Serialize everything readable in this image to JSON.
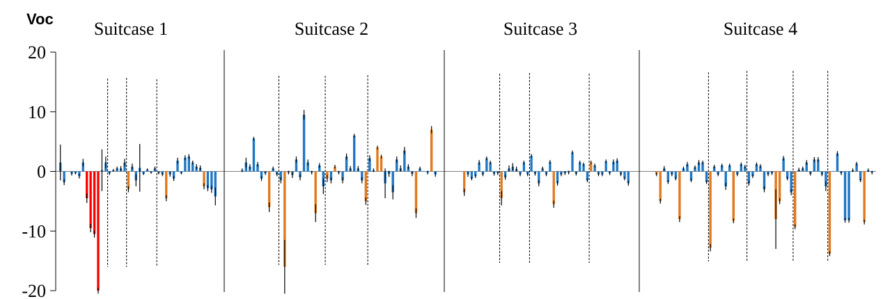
{
  "chart_data": {
    "type": "bar",
    "ylabel": "Voc",
    "ylim": [
      -20,
      20
    ],
    "yticks": [
      "20",
      "10",
      "0",
      "-10",
      "-20"
    ],
    "ytick_values": [
      20,
      10,
      0,
      -10,
      -20
    ],
    "grid": false,
    "colors": {
      "red": "#ff0000",
      "orange": "#e07a1f",
      "blue": "#1f77c4",
      "err": "#000000"
    },
    "panels": [
      {
        "label": "Suitcase 1",
        "values": [
          1.5,
          -1.8,
          0,
          -0.4,
          -0.3,
          -0.8,
          1.5,
          -4.5,
          -9.5,
          -10.5,
          -20,
          0.2,
          1.5,
          -0.3,
          0.2,
          0.5,
          0.5,
          1.5,
          -3,
          0.8,
          -1.5,
          0.6,
          -0.4,
          0.3,
          -0.2,
          0.5,
          -0.3,
          -0.5,
          -4.5,
          -0.5,
          -1.2,
          1.8,
          -0.3,
          2.3,
          2.5,
          1.5,
          0.8,
          0.6,
          -2.5,
          -2.8,
          -3.0,
          -4.2
        ],
        "colors": [
          "b",
          "b",
          "b",
          "b",
          "b",
          "b",
          "b",
          "r",
          "r",
          "r",
          "r",
          "b",
          "b",
          "b",
          "b",
          "b",
          "b",
          "b",
          "o",
          "b",
          "b",
          "b",
          "b",
          "b",
          "b",
          "b",
          "b",
          "b",
          "o",
          "b",
          "b",
          "b",
          "b",
          "b",
          "b",
          "b",
          "b",
          "b",
          "o",
          "b",
          "b",
          "b"
        ],
        "errors": [
          3,
          0.5,
          0,
          0.3,
          0.2,
          0.4,
          0.6,
          0.8,
          0.7,
          0.6,
          0.5,
          3.5,
          1,
          0.3,
          0.2,
          0.3,
          0.4,
          0.6,
          0.5,
          0.5,
          1,
          4,
          0.2,
          0.2,
          0.2,
          0.3,
          0.2,
          0.3,
          0.5,
          0.4,
          0.4,
          0.5,
          0.2,
          0.4,
          0.4,
          0.3,
          0.4,
          0.4,
          0.5,
          0.5,
          0.6,
          1.5
        ],
        "dividers": [
          13,
          18,
          26
        ]
      },
      {
        "label": "Suitcase 2",
        "values": [
          0.2,
          1.5,
          0.8,
          5.5,
          1.2,
          -1.2,
          -0.3,
          -6,
          0.5,
          -0.5,
          -1.5,
          -16,
          -0.2,
          -0.6,
          2,
          -1,
          9.5,
          1.5,
          -0.2,
          -7,
          1,
          -2.5,
          -1.2,
          -1.5,
          0.8,
          -0.2,
          -1.5,
          2.5,
          0.5,
          6,
          0.5,
          -1.5,
          -5,
          2.2,
          0.2,
          4,
          2.5,
          -2,
          -0.4,
          -3.5,
          2,
          0.5,
          3.5,
          0.8,
          -0.4,
          -7,
          0.5,
          0,
          -0.2,
          7,
          -0.5
        ],
        "colors": [
          "b",
          "b",
          "b",
          "b",
          "b",
          "b",
          "b",
          "o",
          "b",
          "b",
          "b",
          "o",
          "b",
          "b",
          "b",
          "b",
          "b",
          "b",
          "b",
          "o",
          "b",
          "b",
          "o",
          "b",
          "o",
          "b",
          "b",
          "b",
          "b",
          "b",
          "b",
          "b",
          "o",
          "b",
          "b",
          "o",
          "o",
          "b",
          "b",
          "b",
          "b",
          "b",
          "b",
          "b",
          "b",
          "o",
          "b",
          "b",
          "b",
          "o",
          "b"
        ],
        "errors": [
          0.3,
          0.8,
          0.4,
          0.3,
          0.4,
          0.4,
          0.3,
          0.8,
          0.3,
          0.3,
          0.5,
          4.5,
          0.3,
          0.5,
          0.5,
          0.5,
          0.8,
          0.5,
          0.3,
          1.5,
          0.4,
          1.3,
          0.6,
          0.5,
          0.3,
          0.3,
          0.5,
          0.5,
          0.4,
          0.3,
          0.4,
          0.5,
          0.6,
          0.5,
          0.3,
          0.3,
          0.3,
          2.5,
          0.5,
          1.2,
          0.5,
          0.5,
          0.6,
          0.4,
          0.4,
          0.8,
          0.3,
          0.3,
          0.3,
          0.6,
          0.4
        ],
        "dividers": [
          10,
          22,
          33
        ]
      },
      {
        "label": "Suitcase 3",
        "values": [
          -3.5,
          -0.5,
          -1.2,
          -0.8,
          1.5,
          -0.5,
          2.2,
          1.5,
          -0.4,
          -0.3,
          -4.5,
          -1,
          0.5,
          0.8,
          0.4,
          -0.5,
          1.5,
          -0.5,
          2.6,
          -0.4,
          -2,
          0.5,
          -0.5,
          1.6,
          -5.5,
          -2,
          -0.5,
          -0.3,
          -0.2,
          3.2,
          -0.4,
          1.5,
          1.2,
          -1.5,
          1.5,
          1,
          -0.5,
          -0.5,
          1.7,
          -0.3,
          1.6,
          1.8,
          -0.5,
          -1.2,
          -2
        ],
        "colors": [
          "o",
          "b",
          "b",
          "b",
          "b",
          "b",
          "b",
          "b",
          "b",
          "b",
          "o",
          "b",
          "b",
          "b",
          "b",
          "b",
          "b",
          "b",
          "b",
          "b",
          "b",
          "b",
          "b",
          "b",
          "o",
          "b",
          "b",
          "b",
          "b",
          "b",
          "b",
          "b",
          "b",
          "b",
          "o",
          "b",
          "b",
          "b",
          "b",
          "b",
          "b",
          "b",
          "b",
          "b",
          "b"
        ],
        "errors": [
          0.6,
          0.4,
          0.3,
          0.3,
          0.4,
          0.3,
          0.3,
          0.3,
          0.3,
          0.3,
          1.2,
          0.4,
          0.5,
          0.6,
          0.4,
          0.3,
          0.3,
          0.3,
          0.3,
          0.3,
          0.5,
          0.3,
          0.3,
          0.3,
          0.6,
          0.4,
          0.3,
          0.3,
          0.3,
          0.3,
          0.3,
          0.3,
          0.3,
          0.3,
          0.3,
          0.3,
          0.3,
          0.3,
          0.3,
          0.3,
          0.4,
          0.4,
          0.3,
          0.3,
          0.4
        ],
        "dividers": [
          10,
          18,
          34
        ]
      },
      {
        "label": "Suitcase 4",
        "values": [
          -0.5,
          -5,
          0.5,
          -1.8,
          -0.5,
          -1.2,
          -8,
          0.5,
          1.2,
          -1.5,
          0.7,
          1.5,
          1.5,
          -1.8,
          -12.8,
          0.8,
          -0.5,
          1,
          -2.5,
          1,
          -8.3,
          -0.5,
          1.2,
          0.8,
          -2,
          -0.8,
          1.2,
          0.9,
          -3,
          -0.5,
          -0.3,
          -8,
          -5,
          2.2,
          -1.2,
          -3.5,
          -9.3,
          0.3,
          0.5,
          1.5,
          -0.4,
          2,
          2,
          -0.5,
          -2.5,
          -13.8,
          0,
          3,
          -0.3,
          -8.2,
          -8.2,
          0.2,
          1.3,
          -1.5,
          -8.5,
          0.2,
          -0.2
        ],
        "colors": [
          "o",
          "o",
          "b",
          "b",
          "b",
          "b",
          "o",
          "b",
          "b",
          "b",
          "b",
          "b",
          "b",
          "b",
          "o",
          "b",
          "b",
          "b",
          "b",
          "b",
          "o",
          "b",
          "b",
          "b",
          "b",
          "b",
          "b",
          "b",
          "b",
          "b",
          "b",
          "o",
          "o",
          "b",
          "b",
          "b",
          "o",
          "b",
          "b",
          "b",
          "b",
          "b",
          "b",
          "b",
          "b",
          "o",
          "b",
          "b",
          "b",
          "b",
          "b",
          "b",
          "b",
          "b",
          "o",
          "b",
          "b"
        ],
        "errors": [
          0.3,
          0.4,
          0.4,
          0.3,
          0.3,
          0.3,
          0.5,
          0.3,
          0.4,
          0.3,
          0.3,
          0.4,
          0.3,
          0.3,
          0.6,
          0.3,
          0.3,
          0.3,
          0.6,
          0.3,
          0.4,
          0.3,
          0.3,
          0.3,
          0.4,
          0.3,
          0.3,
          0.3,
          0.5,
          0.3,
          0.3,
          5,
          0.5,
          0.4,
          0.3,
          0.5,
          0.4,
          0.3,
          0.3,
          0.4,
          0.3,
          0.4,
          0.4,
          0.3,
          0.8,
          0.4,
          0.3,
          0.4,
          0.3,
          0.4,
          0.4,
          0.3,
          0.3,
          0.3,
          0.4,
          0.3,
          0.3
        ],
        "dividers": [
          14,
          24,
          36,
          45
        ]
      }
    ]
  }
}
